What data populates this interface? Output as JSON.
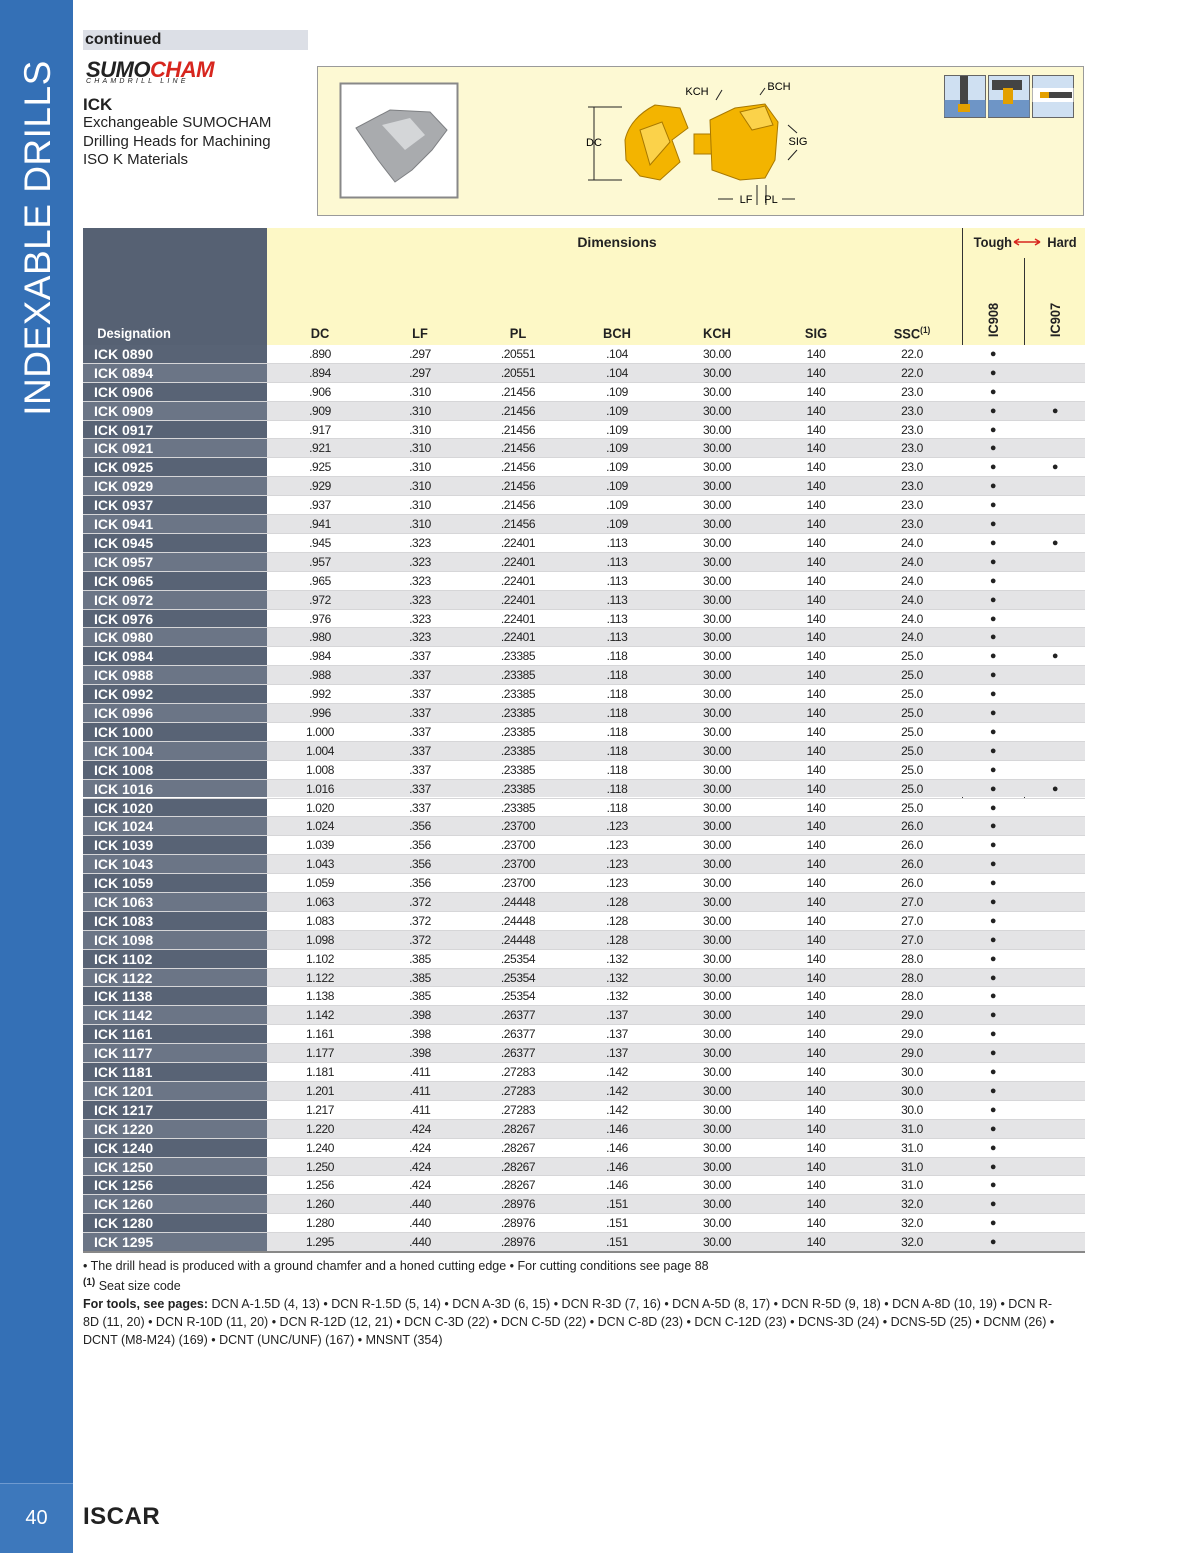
{
  "sidebar": {
    "section_title": "INDEXABLE DRILLS",
    "page_number": "40",
    "brand": "ISCAR"
  },
  "header": {
    "continued": "continued",
    "logo_black": "SUMO",
    "logo_red": "CHAM",
    "logo_tagline": "CHAMDRILL LINE",
    "title": "ICK",
    "description": [
      "Exchangeable SUMOCHAM",
      "Drilling Heads for Machining",
      "ISO K Materials"
    ]
  },
  "diagram": {
    "labels": {
      "kch": "KCH",
      "bch": "BCH",
      "dc": "DC",
      "sig": "SIG",
      "lf": "LF",
      "pl": "PL"
    }
  },
  "table": {
    "designation_header": "Designation",
    "dimensions_header": "Dimensions",
    "grade_scale": {
      "left": "Tough",
      "right": "Hard"
    },
    "columns": [
      "DC",
      "LF",
      "PL",
      "BCH",
      "KCH",
      "SIG",
      "SSC"
    ],
    "ssc_ref": "(1)",
    "grades": [
      "IC908",
      "IC907"
    ],
    "rows": [
      [
        "ICK 0890",
        ".890",
        ".297",
        ".20551",
        ".104",
        "30.00",
        "140",
        "22.0",
        "●",
        null
      ],
      [
        "ICK 0894",
        ".894",
        ".297",
        ".20551",
        ".104",
        "30.00",
        "140",
        "22.0",
        "●",
        null
      ],
      [
        "ICK 0906",
        ".906",
        ".310",
        ".21456",
        ".109",
        "30.00",
        "140",
        "23.0",
        "●",
        null
      ],
      [
        "ICK 0909",
        ".909",
        ".310",
        ".21456",
        ".109",
        "30.00",
        "140",
        "23.0",
        "●",
        "●"
      ],
      [
        "ICK 0917",
        ".917",
        ".310",
        ".21456",
        ".109",
        "30.00",
        "140",
        "23.0",
        "●",
        null
      ],
      [
        "ICK 0921",
        ".921",
        ".310",
        ".21456",
        ".109",
        "30.00",
        "140",
        "23.0",
        "●",
        null
      ],
      [
        "ICK 0925",
        ".925",
        ".310",
        ".21456",
        ".109",
        "30.00",
        "140",
        "23.0",
        "●",
        "●"
      ],
      [
        "ICK 0929",
        ".929",
        ".310",
        ".21456",
        ".109",
        "30.00",
        "140",
        "23.0",
        "●",
        null
      ],
      [
        "ICK 0937",
        ".937",
        ".310",
        ".21456",
        ".109",
        "30.00",
        "140",
        "23.0",
        "●",
        null
      ],
      [
        "ICK 0941",
        ".941",
        ".310",
        ".21456",
        ".109",
        "30.00",
        "140",
        "23.0",
        "●",
        null
      ],
      [
        "ICK 0945",
        ".945",
        ".323",
        ".22401",
        ".113",
        "30.00",
        "140",
        "24.0",
        "●",
        "●"
      ],
      [
        "ICK 0957",
        ".957",
        ".323",
        ".22401",
        ".113",
        "30.00",
        "140",
        "24.0",
        "●",
        null
      ],
      [
        "ICK 0965",
        ".965",
        ".323",
        ".22401",
        ".113",
        "30.00",
        "140",
        "24.0",
        "●",
        null
      ],
      [
        "ICK 0972",
        ".972",
        ".323",
        ".22401",
        ".113",
        "30.00",
        "140",
        "24.0",
        "●",
        null
      ],
      [
        "ICK 0976",
        ".976",
        ".323",
        ".22401",
        ".113",
        "30.00",
        "140",
        "24.0",
        "●",
        null
      ],
      [
        "ICK 0980",
        ".980",
        ".323",
        ".22401",
        ".113",
        "30.00",
        "140",
        "24.0",
        "●",
        null
      ],
      [
        "ICK 0984",
        ".984",
        ".337",
        ".23385",
        ".118",
        "30.00",
        "140",
        "25.0",
        "●",
        "●"
      ],
      [
        "ICK 0988",
        ".988",
        ".337",
        ".23385",
        ".118",
        "30.00",
        "140",
        "25.0",
        "●",
        null
      ],
      [
        "ICK 0992",
        ".992",
        ".337",
        ".23385",
        ".118",
        "30.00",
        "140",
        "25.0",
        "●",
        null
      ],
      [
        "ICK 0996",
        ".996",
        ".337",
        ".23385",
        ".118",
        "30.00",
        "140",
        "25.0",
        "●",
        null
      ],
      [
        "ICK 1000",
        "1.000",
        ".337",
        ".23385",
        ".118",
        "30.00",
        "140",
        "25.0",
        "●",
        null
      ],
      [
        "ICK 1004",
        "1.004",
        ".337",
        ".23385",
        ".118",
        "30.00",
        "140",
        "25.0",
        "●",
        null
      ],
      [
        "ICK 1008",
        "1.008",
        ".337",
        ".23385",
        ".118",
        "30.00",
        "140",
        "25.0",
        "●",
        null
      ],
      [
        "ICK 1016",
        "1.016",
        ".337",
        ".23385",
        ".118",
        "30.00",
        "140",
        "25.0",
        "●",
        "●"
      ],
      [
        "ICK 1020",
        "1.020",
        ".337",
        ".23385",
        ".118",
        "30.00",
        "140",
        "25.0",
        "●",
        null
      ],
      [
        "ICK 1024",
        "1.024",
        ".356",
        ".23700",
        ".123",
        "30.00",
        "140",
        "26.0",
        "●",
        null
      ],
      [
        "ICK 1039",
        "1.039",
        ".356",
        ".23700",
        ".123",
        "30.00",
        "140",
        "26.0",
        "●",
        null
      ],
      [
        "ICK 1043",
        "1.043",
        ".356",
        ".23700",
        ".123",
        "30.00",
        "140",
        "26.0",
        "●",
        null
      ],
      [
        "ICK 1059",
        "1.059",
        ".356",
        ".23700",
        ".123",
        "30.00",
        "140",
        "26.0",
        "●",
        null
      ],
      [
        "ICK 1063",
        "1.063",
        ".372",
        ".24448",
        ".128",
        "30.00",
        "140",
        "27.0",
        "●",
        null
      ],
      [
        "ICK 1083",
        "1.083",
        ".372",
        ".24448",
        ".128",
        "30.00",
        "140",
        "27.0",
        "●",
        null
      ],
      [
        "ICK 1098",
        "1.098",
        ".372",
        ".24448",
        ".128",
        "30.00",
        "140",
        "27.0",
        "●",
        null
      ],
      [
        "ICK 1102",
        "1.102",
        ".385",
        ".25354",
        ".132",
        "30.00",
        "140",
        "28.0",
        "●",
        null
      ],
      [
        "ICK 1122",
        "1.122",
        ".385",
        ".25354",
        ".132",
        "30.00",
        "140",
        "28.0",
        "●",
        null
      ],
      [
        "ICK 1138",
        "1.138",
        ".385",
        ".25354",
        ".132",
        "30.00",
        "140",
        "28.0",
        "●",
        null
      ],
      [
        "ICK 1142",
        "1.142",
        ".398",
        ".26377",
        ".137",
        "30.00",
        "140",
        "29.0",
        "●",
        null
      ],
      [
        "ICK 1161",
        "1.161",
        ".398",
        ".26377",
        ".137",
        "30.00",
        "140",
        "29.0",
        "●",
        null
      ],
      [
        "ICK 1177",
        "1.177",
        ".398",
        ".26377",
        ".137",
        "30.00",
        "140",
        "29.0",
        "●",
        null
      ],
      [
        "ICK 1181",
        "1.181",
        ".411",
        ".27283",
        ".142",
        "30.00",
        "140",
        "30.0",
        "●",
        null
      ],
      [
        "ICK 1201",
        "1.201",
        ".411",
        ".27283",
        ".142",
        "30.00",
        "140",
        "30.0",
        "●",
        null
      ],
      [
        "ICK 1217",
        "1.217",
        ".411",
        ".27283",
        ".142",
        "30.00",
        "140",
        "30.0",
        "●",
        null
      ],
      [
        "ICK 1220",
        "1.220",
        ".424",
        ".28267",
        ".146",
        "30.00",
        "140",
        "31.0",
        "●",
        null
      ],
      [
        "ICK 1240",
        "1.240",
        ".424",
        ".28267",
        ".146",
        "30.00",
        "140",
        "31.0",
        "●",
        null
      ],
      [
        "ICK 1250",
        "1.250",
        ".424",
        ".28267",
        ".146",
        "30.00",
        "140",
        "31.0",
        "●",
        null
      ],
      [
        "ICK 1256",
        "1.256",
        ".424",
        ".28267",
        ".146",
        "30.00",
        "140",
        "31.0",
        "●",
        null
      ],
      [
        "ICK 1260",
        "1.260",
        ".440",
        ".28976",
        ".151",
        "30.00",
        "140",
        "32.0",
        "●",
        null
      ],
      [
        "ICK 1280",
        "1.280",
        ".440",
        ".28976",
        ".151",
        "30.00",
        "140",
        "32.0",
        "●",
        null
      ],
      [
        "ICK 1295",
        "1.295",
        ".440",
        ".28976",
        ".151",
        "30.00",
        "140",
        "32.0",
        "●",
        null
      ]
    ]
  },
  "footnotes": {
    "notes": "• The drill head is produced with a ground chamfer and a honed cutting edge   • For cutting conditions see page 88",
    "ref_mark": "(1)",
    "ref_text": "Seat size code",
    "tools_label": "For tools, see pages:",
    "tools": "DCN A-1.5D (4, 13) • DCN R-1.5D (5, 14) • DCN A-3D (6, 15) • DCN R-3D (7, 16) • DCN A-5D (8, 17) • DCN R-5D (9, 18) • DCN A-8D (10, 19) • DCN R-8D (11, 20) • DCN R-10D (11, 20) • DCN R-12D (12, 21) • DCN C-3D (22) • DCN C-5D (22) • DCN C-8D (23) • DCN C-12D (23) • DCNS-3D (24) • DCNS-5D (25) • DCNM (26) • DCNT (M8-M24) (169) • DCNT (UNC/UNF) (167) • MNSNT (354)"
  }
}
